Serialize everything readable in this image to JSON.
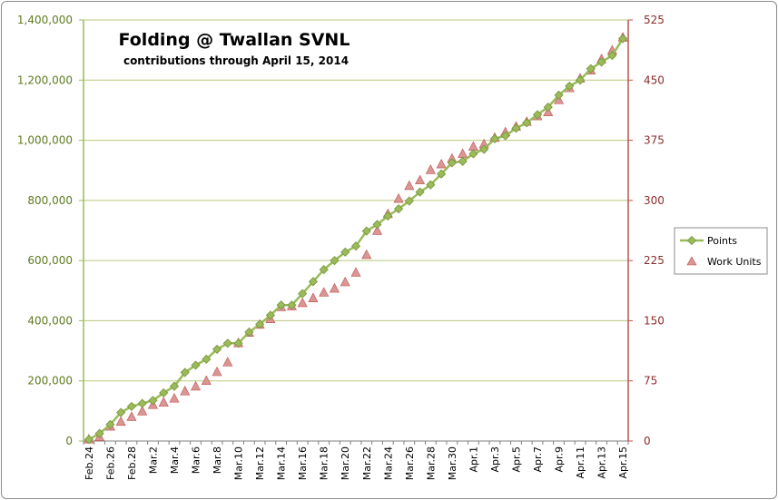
{
  "chart_data": {
    "type": "line",
    "title": "Folding @ Twallan SVNL",
    "subtitle": "contributions through April 15, 2014",
    "categories": [
      "Feb.24",
      "Feb.25",
      "Feb.26",
      "Feb.27",
      "Feb.28",
      "Mar.1",
      "Mar.2",
      "Mar.3",
      "Mar.4",
      "Mar.5",
      "Mar.6",
      "Mar.7",
      "Mar.8",
      "Mar.9",
      "Mar.10",
      "Mar.11",
      "Mar.12",
      "Mar.13",
      "Mar.14",
      "Mar.15",
      "Mar.16",
      "Mar.17",
      "Mar.18",
      "Mar.19",
      "Mar.20",
      "Mar.21",
      "Mar.22",
      "Mar.23",
      "Mar.24",
      "Mar.25",
      "Mar.26",
      "Mar.27",
      "Mar.28",
      "Mar.29",
      "Mar.30",
      "Mar.31",
      "Apr.1",
      "Apr.2",
      "Apr.3",
      "Apr.4",
      "Apr.5",
      "Apr.6",
      "Apr.7",
      "Apr.8",
      "Apr.9",
      "Apr.10",
      "Apr.11",
      "Apr.12",
      "Apr.13",
      "Apr.14",
      "Apr.15"
    ],
    "tick_labels": [
      "Feb.24",
      "Feb.26",
      "Feb.28",
      "Mar.2",
      "Mar.4",
      "Mar.6",
      "Mar.8",
      "Mar.10",
      "Mar.12",
      "Mar.14",
      "Mar.16",
      "Mar.18",
      "Mar.20",
      "Mar.22",
      "Mar.24",
      "Mar.26",
      "Mar.28",
      "Mar.30",
      "Apr.1",
      "Apr.3",
      "Apr.5",
      "Apr.7",
      "Apr.9",
      "Apr.11",
      "Apr.13",
      "Apr.15"
    ],
    "y_left": {
      "min": 0,
      "max": 1400000,
      "step": 200000,
      "ticks": [
        "0",
        "200,000",
        "400,000",
        "600,000",
        "800,000",
        "1,000,000",
        "1,200,000",
        "1,400,000"
      ]
    },
    "y_right": {
      "min": 0,
      "max": 525,
      "step": 75,
      "ticks": [
        "0",
        "75",
        "150",
        "225",
        "300",
        "375",
        "450",
        "525"
      ]
    },
    "grid": true,
    "legend_position": "right",
    "series": [
      {
        "name": "Points",
        "axis": "left",
        "color": "#9bbb59",
        "marker": "diamond",
        "values": [
          5000,
          25000,
          55000,
          95000,
          115000,
          125000,
          135000,
          160000,
          182000,
          228000,
          252000,
          272000,
          305000,
          325000,
          325000,
          362000,
          388000,
          418000,
          452000,
          452000,
          490000,
          530000,
          570000,
          600000,
          628000,
          648000,
          698000,
          720000,
          748000,
          772000,
          798000,
          828000,
          852000,
          888000,
          925000,
          930000,
          955000,
          970000,
          1005000,
          1015000,
          1040000,
          1058000,
          1085000,
          1110000,
          1150000,
          1180000,
          1200000,
          1238000,
          1260000,
          1282000,
          1338000
        ]
      },
      {
        "name": "Work Units",
        "axis": "right",
        "color": "#d99694",
        "marker": "triangle",
        "values": [
          2,
          5,
          18,
          24,
          30,
          37,
          45,
          48,
          53,
          62,
          68,
          75,
          86,
          98,
          122,
          135,
          145,
          152,
          167,
          168,
          172,
          178,
          185,
          190,
          198,
          210,
          232,
          262,
          283,
          302,
          318,
          325,
          338,
          345,
          352,
          358,
          367,
          370,
          378,
          385,
          392,
          398,
          405,
          410,
          425,
          440,
          452,
          462,
          476,
          487,
          503
        ]
      }
    ]
  }
}
